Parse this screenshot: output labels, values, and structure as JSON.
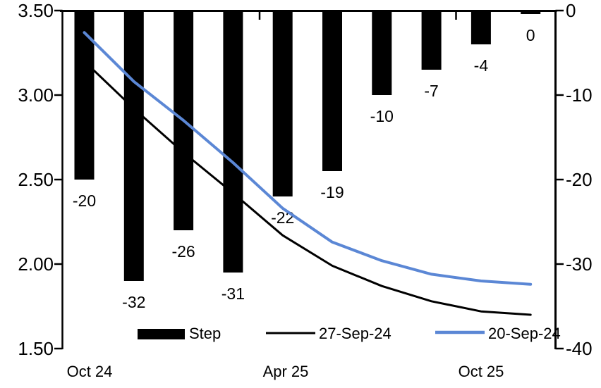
{
  "chart_data": {
    "type": "bar+line",
    "title": "",
    "x_tick_labels": [
      "Oct 24",
      "Apr 25",
      "Oct 25"
    ],
    "left_axis": {
      "side": "left",
      "min": 1.5,
      "max": 3.5,
      "tick_labels": [
        "3.50",
        "3.00",
        "2.50",
        "2.00",
        "1.50"
      ],
      "tick_values": [
        3.5,
        3.0,
        2.5,
        2.0,
        1.5
      ]
    },
    "right_axis": {
      "side": "right",
      "min": -40,
      "max": 0,
      "tick_labels": [
        "0",
        "-10",
        "-20",
        "-30",
        "-40"
      ],
      "tick_values": [
        0,
        -10,
        -20,
        -30,
        -40
      ]
    },
    "bar_series": {
      "name": "Step",
      "axis": "right",
      "color": "#000000",
      "values": [
        -20,
        -32,
        -26,
        -31,
        -22,
        -19,
        -10,
        -7,
        -4,
        0
      ],
      "data_labels": [
        "-20",
        "-32",
        "-26",
        "-31",
        "-22",
        "-19",
        "-10",
        "-7",
        "-4",
        "0"
      ]
    },
    "line_series": [
      {
        "name": "27-Sep-24",
        "axis": "left",
        "color": "#000000",
        "stroke_width": 3,
        "values": [
          3.2,
          2.92,
          2.66,
          2.42,
          2.17,
          1.99,
          1.87,
          1.78,
          1.72,
          1.7
        ]
      },
      {
        "name": "20-Sep-24",
        "axis": "left",
        "color": "#5B87D5",
        "stroke_width": 4,
        "values": [
          3.37,
          3.08,
          2.85,
          2.6,
          2.33,
          2.13,
          2.02,
          1.94,
          1.9,
          1.88
        ]
      }
    ],
    "legend": {
      "position": "bottom-inside",
      "entries": [
        "Step",
        "27-Sep-24",
        "20-Sep-24"
      ]
    },
    "grid": false,
    "background_color": "#FFFFFF",
    "axis_color": "#000000"
  }
}
